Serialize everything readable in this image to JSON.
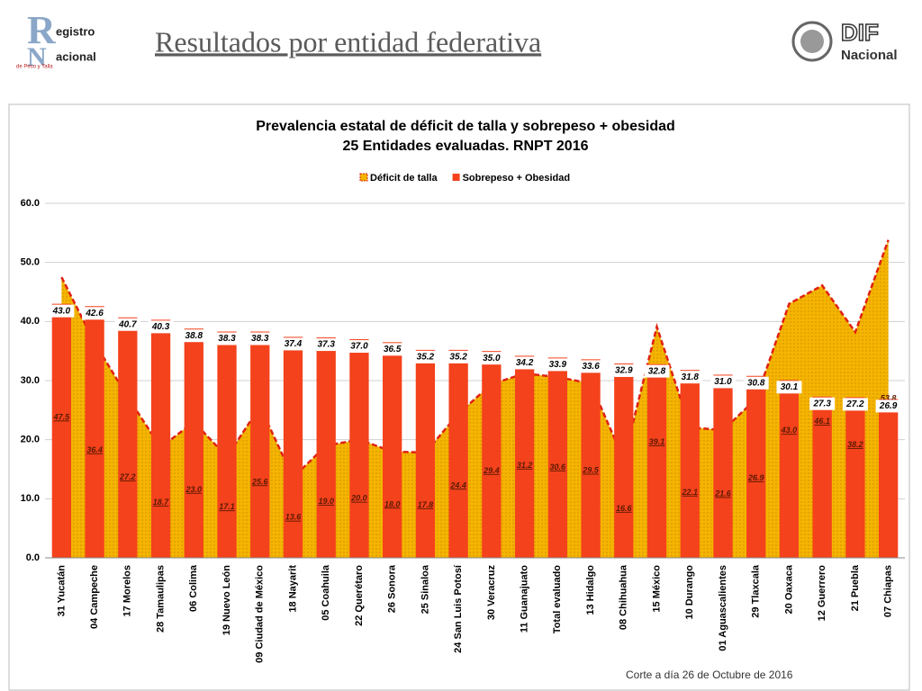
{
  "header": {
    "title": "Resultados por entidad federativa",
    "logo_left": {
      "letter1": "R",
      "line1": "egistro",
      "letter2": "N",
      "line2": "acional",
      "tagline": "de Peso y Talla"
    },
    "logo_right": {
      "line1": "DIF",
      "line2": "Nacional"
    }
  },
  "chart_data": {
    "type": "bar",
    "title": "Prevalencia estatal de déficit de talla y sobrepeso + obesidad",
    "subtitle": "25 Entidades evaluadas. RNPT 2016",
    "categories": [
      "31 Yucatán",
      "04 Campeche",
      "17 Morelos",
      "28 Tamaulipas",
      "06 Colima",
      "19 Nuevo León",
      "09 Ciudad de México",
      "18 Nayarit",
      "05 Coahuila",
      "22 Querétaro",
      "26 Sonora",
      "25 Sinaloa",
      "24 San Luis Potosí",
      "30 Veracruz",
      "11 Guanajuato",
      "Total evaluado",
      "13 Hidalgo",
      "08 Chihuahua",
      "15 México",
      "10 Durango",
      "01 Aguascalientes",
      "29 Tlaxcala",
      "20 Oaxaca",
      "12 Guerrero",
      "21 Puebla",
      "07 Chiapas"
    ],
    "series": [
      {
        "name": "Déficit de talla",
        "type": "area",
        "color": "#f5b400",
        "line_color": "#e02010",
        "values": [
          47.5,
          36.4,
          27.2,
          18.7,
          23.0,
          17.1,
          25.6,
          13.6,
          19.0,
          20.0,
          18.0,
          17.8,
          24.4,
          29.4,
          31.2,
          30.6,
          29.5,
          16.6,
          39.1,
          22.1,
          21.6,
          26.9,
          43.0,
          46.1,
          38.2,
          53.8
        ],
        "value_labels": [
          "47.5",
          "36.4",
          "27.2",
          "18.7",
          "23.0",
          "17.1",
          "25.6",
          "13.6",
          "19.0",
          "20.0",
          "18.0",
          "17.8",
          "24.4",
          "29.4",
          "31.2",
          "30.6",
          "29.5",
          "16.6",
          "39.1",
          "22.1",
          "21.6",
          "26.9",
          "43.0",
          "46.1",
          "38.2",
          "53.8"
        ]
      },
      {
        "name": "Sobrepeso + Obesidad",
        "type": "bar",
        "color": "#f4421c",
        "values": [
          43.0,
          42.6,
          40.7,
          40.3,
          38.8,
          38.3,
          38.3,
          37.4,
          37.3,
          37.0,
          36.5,
          35.2,
          35.2,
          35.0,
          34.2,
          33.9,
          33.6,
          32.9,
          32.8,
          31.8,
          31.0,
          30.8,
          30.1,
          27.3,
          27.2,
          26.9
        ],
        "value_labels": [
          "43.0",
          "42.6",
          "40.7",
          "40.3",
          "38.8",
          "38.3",
          "38.3",
          "37.4",
          "37.3",
          "37.0",
          "36.5",
          "35.2",
          "35.2",
          "35.0",
          "34.2",
          "33.9",
          "33.6",
          "32.9",
          "32.8",
          "31.8",
          "31.0",
          "30.8",
          "30.1",
          "27.3",
          "27.2",
          "26.9"
        ]
      }
    ],
    "ylim": [
      0,
      60
    ],
    "yticks": [
      {
        "value": 0,
        "label": "0.0"
      },
      {
        "value": 10,
        "label": "10.0"
      },
      {
        "value": 20,
        "label": "20.0"
      },
      {
        "value": 30,
        "label": "30.0"
      },
      {
        "value": 40,
        "label": "40.0"
      },
      {
        "value": 50,
        "label": "50.0"
      },
      {
        "value": 60,
        "label": "60.0"
      }
    ],
    "grid": true,
    "legend": "top",
    "note": "Corte a día 26 de Octubre de 2016"
  }
}
